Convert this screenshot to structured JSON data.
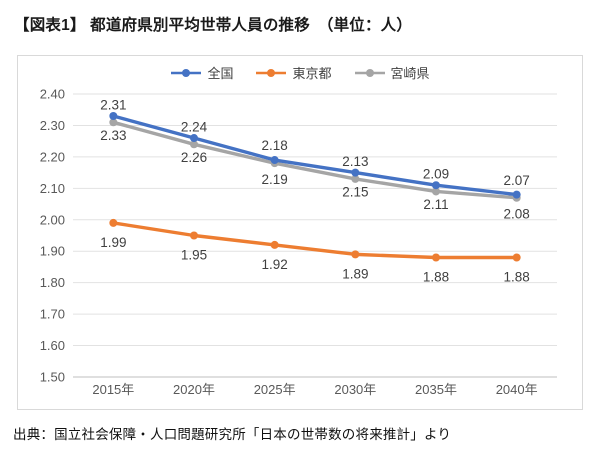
{
  "header": {
    "title": "【図表1】 都道府県別平均世帯人員の推移　（単位：人）"
  },
  "footer": {
    "source": "出典：国立社会保障・人口問題研究所「日本の世帯数の将来推計」より"
  },
  "colors": {
    "national_line": "#4472C4",
    "tokyo_line": "#ED7D31",
    "miyazaki_line": "#A5A5A5",
    "gridline": "#E2E2E2",
    "axis_line": "#BFBFBF",
    "axis_text": "#595959",
    "data_label_text": "#404040",
    "chart_border": "#D9D9D9"
  },
  "chart_data": {
    "type": "line",
    "title": "【図表1】 都道府県別平均世帯人員の推移",
    "unit_note": "（単位：人）",
    "categories": [
      "2015年",
      "2020年",
      "2025年",
      "2030年",
      "2035年",
      "2040年"
    ],
    "series": [
      {
        "key": "zenkoku",
        "name": "全国",
        "color": "#4472C4",
        "values": [
          2.33,
          2.26,
          2.19,
          2.15,
          2.11,
          2.08
        ],
        "label_position": "below",
        "marker": "circle"
      },
      {
        "key": "tokyo",
        "name": "東京都",
        "color": "#ED7D31",
        "values": [
          1.99,
          1.95,
          1.92,
          1.89,
          1.88,
          1.88
        ],
        "label_position": "below",
        "marker": "circle"
      },
      {
        "key": "miyazaki",
        "name": "宮崎県",
        "color": "#A5A5A5",
        "values": [
          2.31,
          2.24,
          2.18,
          2.13,
          2.09,
          2.07
        ],
        "label_position": "above",
        "marker": "circle"
      }
    ],
    "ylim": [
      1.5,
      2.4
    ],
    "ytick_step": 0.1,
    "ytick_labels": [
      "1.50",
      "1.60",
      "1.70",
      "1.80",
      "1.90",
      "2.00",
      "2.10",
      "2.20",
      "2.30",
      "2.40"
    ],
    "grid": "horizontal",
    "legend_position": "top",
    "xlabel": "",
    "ylabel": ""
  }
}
